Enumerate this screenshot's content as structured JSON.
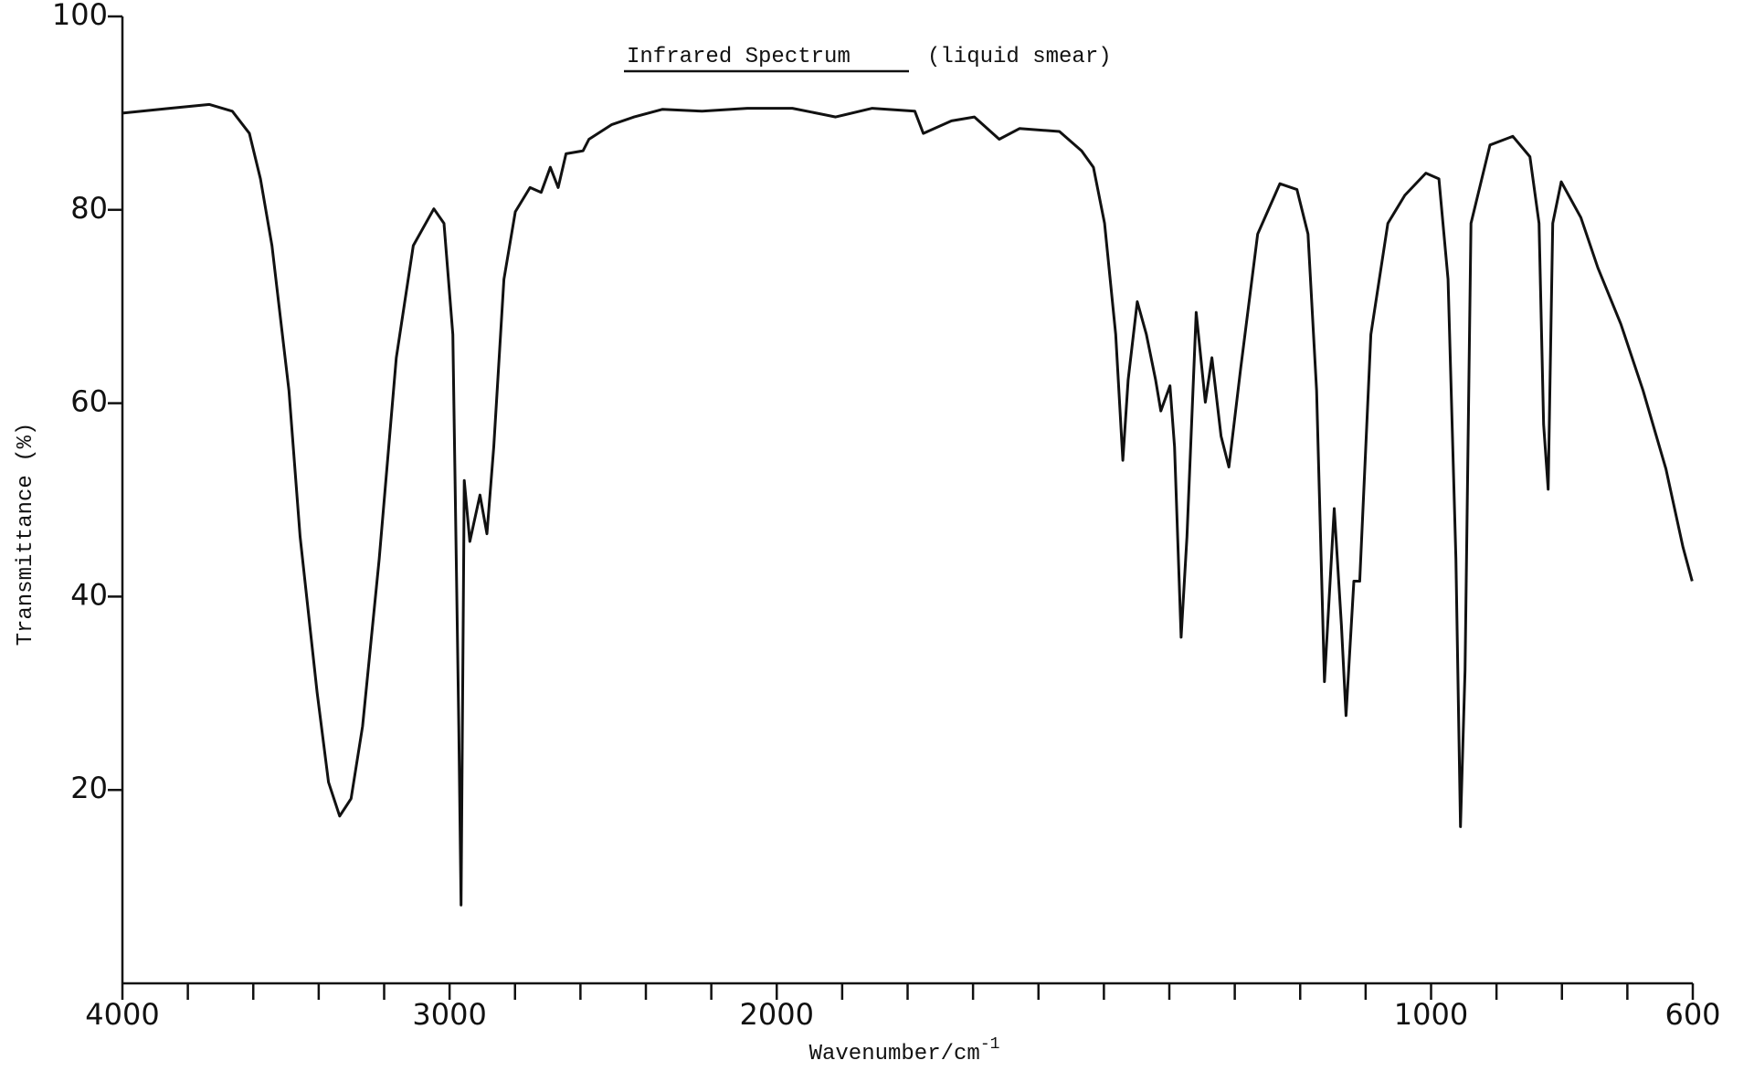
{
  "chart_data": {
    "type": "line",
    "title": "Infrared Spectrum",
    "subtitle": "(liquid smear)",
    "x_label": "Wavenumber/cm",
    "x_label_superscript": "-1",
    "y_label": "Transmittance (%)",
    "xlim": [
      4000,
      600
    ],
    "x_scale_break": 2000,
    "x_scale_compression_above_break": 2,
    "ylim": [
      0,
      100
    ],
    "xticks": [
      4000,
      3000,
      2000,
      1000,
      600
    ],
    "xminor_ticks": [
      3800,
      3600,
      3400,
      3200,
      2800,
      2600,
      2400,
      2200,
      1900,
      1800,
      1700,
      1600,
      1500,
      1400,
      1300,
      1200,
      1100,
      900,
      800,
      700
    ],
    "yticks": [
      20,
      40,
      60,
      80,
      100
    ],
    "grid": false,
    "series": [
      {
        "name": "Transmittance",
        "color": "#111111",
        "x": [
          4000,
          3855,
          3734,
          3664,
          3612,
          3578,
          3543,
          3491,
          3457,
          3405,
          3370,
          3336,
          3301,
          3266,
          3215,
          3163,
          3111,
          3048,
          3017,
          2990,
          2972,
          2965,
          2955,
          2938,
          2907,
          2886,
          2865,
          2834,
          2799,
          2754,
          2720,
          2692,
          2668,
          2644,
          2592,
          2574,
          2505,
          2436,
          2349,
          2228,
          2090,
          1976,
          1910,
          1854,
          1789,
          1776,
          1733,
          1698,
          1660,
          1629,
          1568,
          1534,
          1516,
          1499,
          1482,
          1471,
          1463,
          1449,
          1435,
          1421,
          1413,
          1399,
          1392,
          1382,
          1373,
          1359,
          1345,
          1335,
          1321,
          1309,
          1291,
          1265,
          1231,
          1205,
          1188,
          1175,
          1163,
          1148,
          1137,
          1130,
          1118,
          1109,
          1092,
          1066,
          1040,
          1008,
          988,
          974,
          962,
          955,
          948,
          939,
          910,
          875,
          849,
          835,
          828,
          821,
          814,
          801,
          771,
          745,
          710,
          676,
          641,
          615,
          601
        ],
        "values": [
          90,
          90.5,
          90.9,
          90.2,
          87.9,
          83.2,
          76.3,
          61.3,
          46.2,
          30.1,
          20.8,
          17.3,
          19.1,
          26.6,
          43.9,
          64.7,
          76.3,
          80.1,
          78.6,
          67.1,
          26.6,
          8.1,
          52.0,
          45.7,
          50.5,
          46.5,
          55.5,
          72.8,
          79.8,
          82.3,
          81.8,
          84.4,
          82.3,
          85.8,
          86.1,
          87.3,
          88.8,
          89.6,
          90.4,
          90.2,
          90.5,
          90.5,
          89.6,
          90.5,
          90.2,
          87.9,
          89.2,
          89.6,
          87.3,
          88.4,
          88.1,
          86.1,
          84.4,
          78.6,
          67.1,
          54.1,
          62.4,
          70.5,
          67.1,
          62.4,
          59.2,
          61.8,
          55.5,
          35.8,
          46.2,
          69.4,
          60.1,
          64.7,
          56.6,
          53.4,
          63.6,
          77.5,
          82.7,
          82.1,
          77.5,
          61.3,
          31.2,
          49.1,
          37.0,
          27.7,
          41.6,
          41.6,
          67.1,
          78.6,
          81.5,
          83.8,
          83.2,
          72.8,
          43.9,
          16.2,
          32.4,
          78.6,
          86.7,
          87.6,
          85.5,
          78.6,
          57.8,
          51.1,
          78.6,
          82.9,
          79.2,
          74.0,
          68.2,
          61.3,
          53.2,
          45.1,
          41.6
        ]
      }
    ]
  }
}
